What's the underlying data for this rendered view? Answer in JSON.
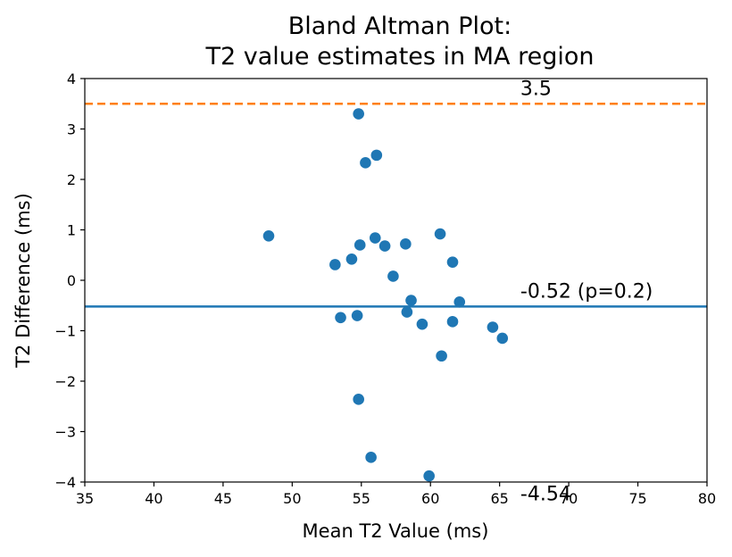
{
  "chart_data": {
    "type": "scatter",
    "title_lines": [
      "Bland Altman Plot:",
      "T2 value estimates in MA region"
    ],
    "xlabel": "Mean T2 Value (ms)",
    "ylabel": "T2 Difference (ms)",
    "xlim": [
      35,
      80
    ],
    "ylim": [
      -4,
      4
    ],
    "x_ticks": [
      35,
      40,
      45,
      50,
      55,
      60,
      65,
      70,
      75,
      80
    ],
    "x_tick_labels": [
      "35",
      "40",
      "45",
      "50",
      "55",
      "60",
      "65",
      "70",
      "75",
      "80"
    ],
    "y_ticks": [
      4,
      3,
      2,
      1,
      0,
      -1,
      -2,
      -3,
      -4
    ],
    "y_tick_labels": [
      "4",
      "3",
      "2",
      "1",
      "0",
      "−1",
      "−2",
      "−3",
      "−4"
    ],
    "grid": false,
    "point_color": "#1f77b4",
    "points": [
      {
        "x": 48.3,
        "y": 0.88
      },
      {
        "x": 53.1,
        "y": 0.31
      },
      {
        "x": 53.5,
        "y": -0.74
      },
      {
        "x": 54.3,
        "y": 0.42
      },
      {
        "x": 54.7,
        "y": -0.7
      },
      {
        "x": 54.8,
        "y": 3.3
      },
      {
        "x": 54.8,
        "y": -2.36
      },
      {
        "x": 54.9,
        "y": 0.7
      },
      {
        "x": 55.3,
        "y": 2.33
      },
      {
        "x": 55.7,
        "y": -3.51
      },
      {
        "x": 56.0,
        "y": 0.84
      },
      {
        "x": 56.1,
        "y": 2.48
      },
      {
        "x": 56.7,
        "y": 0.68
      },
      {
        "x": 57.3,
        "y": 0.08
      },
      {
        "x": 58.2,
        "y": 0.72
      },
      {
        "x": 58.3,
        "y": -0.63
      },
      {
        "x": 58.6,
        "y": -0.4
      },
      {
        "x": 59.4,
        "y": -0.87
      },
      {
        "x": 59.9,
        "y": -3.88
      },
      {
        "x": 60.7,
        "y": 0.92
      },
      {
        "x": 60.8,
        "y": -1.5
      },
      {
        "x": 61.6,
        "y": 0.36
      },
      {
        "x": 61.6,
        "y": -0.82
      },
      {
        "x": 62.1,
        "y": -0.43
      },
      {
        "x": 64.5,
        "y": -0.93
      },
      {
        "x": 65.2,
        "y": -1.15
      }
    ],
    "reference_lines": [
      {
        "y": -0.52,
        "color": "#1f77b4",
        "style": "solid",
        "label": "-0.52 (p=0.2)"
      },
      {
        "y": 3.5,
        "color": "#ff7f0e",
        "style": "dashed",
        "label": "3.5"
      },
      {
        "y": -4.54,
        "color": "#2ca02c",
        "style": "dashed",
        "label": "-4.54"
      }
    ]
  }
}
